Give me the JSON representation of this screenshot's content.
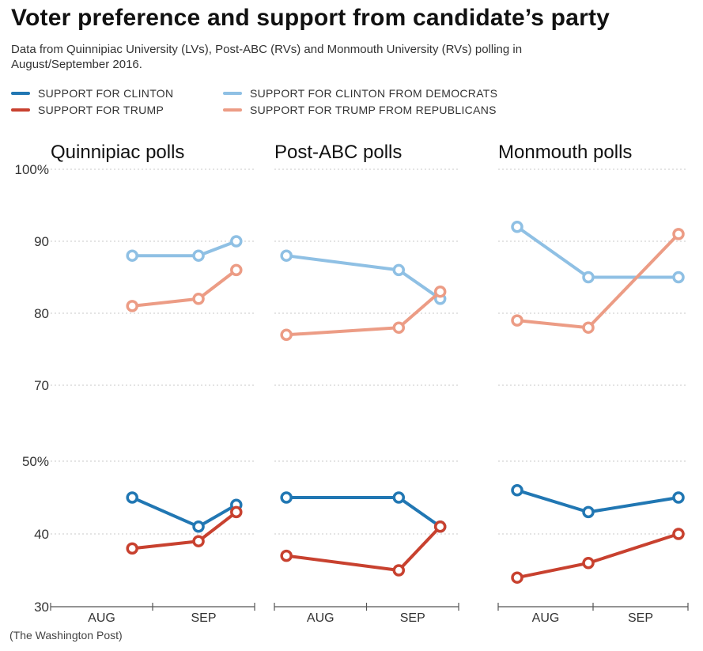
{
  "title": "Voter preference and support from candidate’s party",
  "subtitle": "Data from Quinnipiac University (LVs), Post-ABC (RVs) and Monmouth University (RVs) polling in August/September 2016.",
  "legend": [
    {
      "label": "SUPPORT FOR CLINTON",
      "color": "#2177b3"
    },
    {
      "label": "SUPPORT FOR TRUMP",
      "color": "#c8412f"
    },
    {
      "label": "SUPPORT FOR CLINTON FROM DEMOCRATS",
      "color": "#8fc0e4"
    },
    {
      "label": "SUPPORT FOR TRUMP FROM REPUBLICANS",
      "color": "#ec9c85"
    }
  ],
  "source": "(The Washington Post)",
  "chart_data": {
    "type": "line",
    "y_axis_upper": {
      "ticks": [
        "100%",
        "90",
        "80",
        "70"
      ],
      "range": [
        70,
        100
      ]
    },
    "y_axis_lower": {
      "ticks": [
        "50%",
        "40",
        "30"
      ],
      "range": [
        30,
        50
      ]
    },
    "x_ticks": [
      "AUG",
      "SEP"
    ],
    "panels": [
      {
        "title": "Quinnipiac polls",
        "series": [
          {
            "name": "SUPPORT FOR CLINTON FROM DEMOCRATS",
            "x": [
              0.8,
              1.45,
              1.82
            ],
            "values": [
              88,
              88,
              90
            ]
          },
          {
            "name": "SUPPORT FOR TRUMP FROM REPUBLICANS",
            "x": [
              0.8,
              1.45,
              1.82
            ],
            "values": [
              81,
              82,
              86
            ]
          },
          {
            "name": "SUPPORT FOR CLINTON",
            "x": [
              0.8,
              1.45,
              1.82
            ],
            "values": [
              45,
              41,
              44
            ]
          },
          {
            "name": "SUPPORT FOR TRUMP",
            "x": [
              0.8,
              1.45,
              1.82
            ],
            "values": [
              38,
              39,
              43
            ]
          }
        ]
      },
      {
        "title": "Post-ABC polls",
        "series": [
          {
            "name": "SUPPORT FOR CLINTON FROM DEMOCRATS",
            "x": [
              0.13,
              1.35,
              1.8
            ],
            "values": [
              88,
              86,
              82
            ]
          },
          {
            "name": "SUPPORT FOR TRUMP FROM REPUBLICANS",
            "x": [
              0.13,
              1.35,
              1.8
            ],
            "values": [
              77,
              78,
              83
            ]
          },
          {
            "name": "SUPPORT FOR CLINTON",
            "x": [
              0.13,
              1.35,
              1.8
            ],
            "values": [
              45,
              45,
              41
            ]
          },
          {
            "name": "SUPPORT FOR TRUMP",
            "x": [
              0.13,
              1.35,
              1.8
            ],
            "values": [
              37,
              35,
              41
            ]
          }
        ]
      },
      {
        "title": "Monmouth polls",
        "series": [
          {
            "name": "SUPPORT FOR CLINTON FROM DEMOCRATS",
            "x": [
              0.2,
              0.95,
              1.9
            ],
            "values": [
              92,
              85,
              85
            ]
          },
          {
            "name": "SUPPORT FOR TRUMP FROM REPUBLICANS",
            "x": [
              0.2,
              0.95,
              1.9
            ],
            "values": [
              79,
              78,
              91
            ]
          },
          {
            "name": "SUPPORT FOR CLINTON",
            "x": [
              0.2,
              0.95,
              1.9
            ],
            "values": [
              46,
              43,
              45
            ]
          },
          {
            "name": "SUPPORT FOR TRUMP",
            "x": [
              0.2,
              0.95,
              1.9
            ],
            "values": [
              34,
              36,
              40
            ]
          }
        ]
      }
    ]
  }
}
